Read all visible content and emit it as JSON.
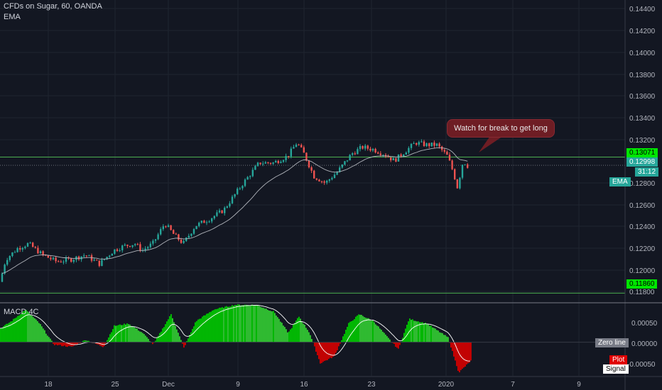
{
  "header": {
    "symbol_title": "CFDs on Sugar, 60, OANDA",
    "indicator_label": "EMA"
  },
  "macd": {
    "label": "MACD 4C",
    "legend": {
      "zero_line": "Zero line",
      "plot": "Plot",
      "signal": "Signal"
    }
  },
  "annotation": {
    "text": "Watch for break to get long"
  },
  "price_tags": {
    "resistance": "0.13071",
    "last_price": "0.12998",
    "countdown": "31:12",
    "ema": "EMA",
    "support": "0.11860"
  },
  "colors": {
    "background": "#131722",
    "up_candle": "#26a69a",
    "down_candle": "#ef5350",
    "level_line": "#4caf50",
    "histogram_up_strong": "#00c800",
    "histogram_up_weak": "#33cc33",
    "histogram_down": "#d50000"
  },
  "chart_data": [
    {
      "type": "candlestick",
      "title": "CFDs on Sugar, 60, OANDA",
      "x_tick_labels": [
        "18",
        "25",
        "Dec",
        "9",
        "16",
        "23",
        "2020",
        "7",
        "9"
      ],
      "y_tick_labels": [
        "0.14400",
        "0.14200",
        "0.14000",
        "0.13800",
        "0.13600",
        "0.13400",
        "0.13200",
        "0.12800",
        "0.12600",
        "0.12400",
        "0.12200",
        "0.12000",
        "0.11800"
      ],
      "ylim": [
        0.1178,
        0.1447
      ],
      "horizontal_levels": [
        0.13071,
        0.1186
      ],
      "last_price": 0.12998,
      "price_anchors": [
        [
          0,
          0.1196
        ],
        [
          8,
          0.1216
        ],
        [
          25,
          0.1226
        ],
        [
          40,
          0.123
        ],
        [
          60,
          0.122
        ],
        [
          80,
          0.1214
        ],
        [
          100,
          0.1216
        ],
        [
          120,
          0.122
        ],
        [
          140,
          0.1212
        ],
        [
          160,
          0.1224
        ],
        [
          175,
          0.1228
        ],
        [
          190,
          0.123
        ],
        [
          200,
          0.1224
        ],
        [
          215,
          0.123
        ],
        [
          232,
          0.1248
        ],
        [
          245,
          0.1238
        ],
        [
          258,
          0.123
        ],
        [
          275,
          0.1246
        ],
        [
          295,
          0.1252
        ],
        [
          315,
          0.126
        ],
        [
          340,
          0.1282
        ],
        [
          365,
          0.1302
        ],
        [
          385,
          0.1302
        ],
        [
          405,
          0.1308
        ],
        [
          418,
          0.132
        ],
        [
          428,
          0.131
        ],
        [
          442,
          0.129
        ],
        [
          458,
          0.1284
        ],
        [
          475,
          0.1294
        ],
        [
          495,
          0.131
        ],
        [
          510,
          0.1316
        ],
        [
          525,
          0.1314
        ],
        [
          540,
          0.131
        ],
        [
          555,
          0.1304
        ],
        [
          570,
          0.1312
        ],
        [
          585,
          0.132
        ],
        [
          600,
          0.1318
        ],
        [
          615,
          0.1318
        ],
        [
          630,
          0.1308
        ],
        [
          638,
          0.1294
        ],
        [
          644,
          0.128
        ],
        [
          652,
          0.1304
        ],
        [
          660,
          0.1298
        ]
      ]
    },
    {
      "type": "bar",
      "title": "MACD 4C",
      "y_tick_labels": [
        "0.00050",
        "0.00000",
        "-0.00050"
      ],
      "ylim": [
        -0.00072,
        0.00083
      ],
      "series_names": [
        "Plot",
        "Signal"
      ],
      "histogram_anchors": [
        [
          0,
          0.0003
        ],
        [
          15,
          0.00045
        ],
        [
          35,
          0.0007
        ],
        [
          55,
          0.0004
        ],
        [
          75,
          -5e-05
        ],
        [
          100,
          -0.0001
        ],
        [
          120,
          5e-05
        ],
        [
          145,
          -0.0001
        ],
        [
          160,
          0.00035
        ],
        [
          180,
          0.0004
        ],
        [
          200,
          0.0002
        ],
        [
          215,
          -5e-05
        ],
        [
          240,
          0.0006
        ],
        [
          258,
          -0.00012
        ],
        [
          275,
          0.00045
        ],
        [
          300,
          0.0007
        ],
        [
          330,
          0.0008
        ],
        [
          360,
          0.0008
        ],
        [
          385,
          0.00065
        ],
        [
          405,
          0.0002
        ],
        [
          420,
          0.00055
        ],
        [
          435,
          0.0002
        ],
        [
          450,
          -0.00045
        ],
        [
          470,
          -0.0003
        ],
        [
          490,
          0.0004
        ],
        [
          505,
          0.0006
        ],
        [
          525,
          0.00045
        ],
        [
          545,
          0.0001
        ],
        [
          560,
          -0.00015
        ],
        [
          575,
          0.0005
        ],
        [
          600,
          0.0004
        ],
        [
          620,
          0.0002
        ],
        [
          630,
          0.0001
        ],
        [
          645,
          -0.00065
        ],
        [
          662,
          -0.0004
        ]
      ]
    }
  ]
}
